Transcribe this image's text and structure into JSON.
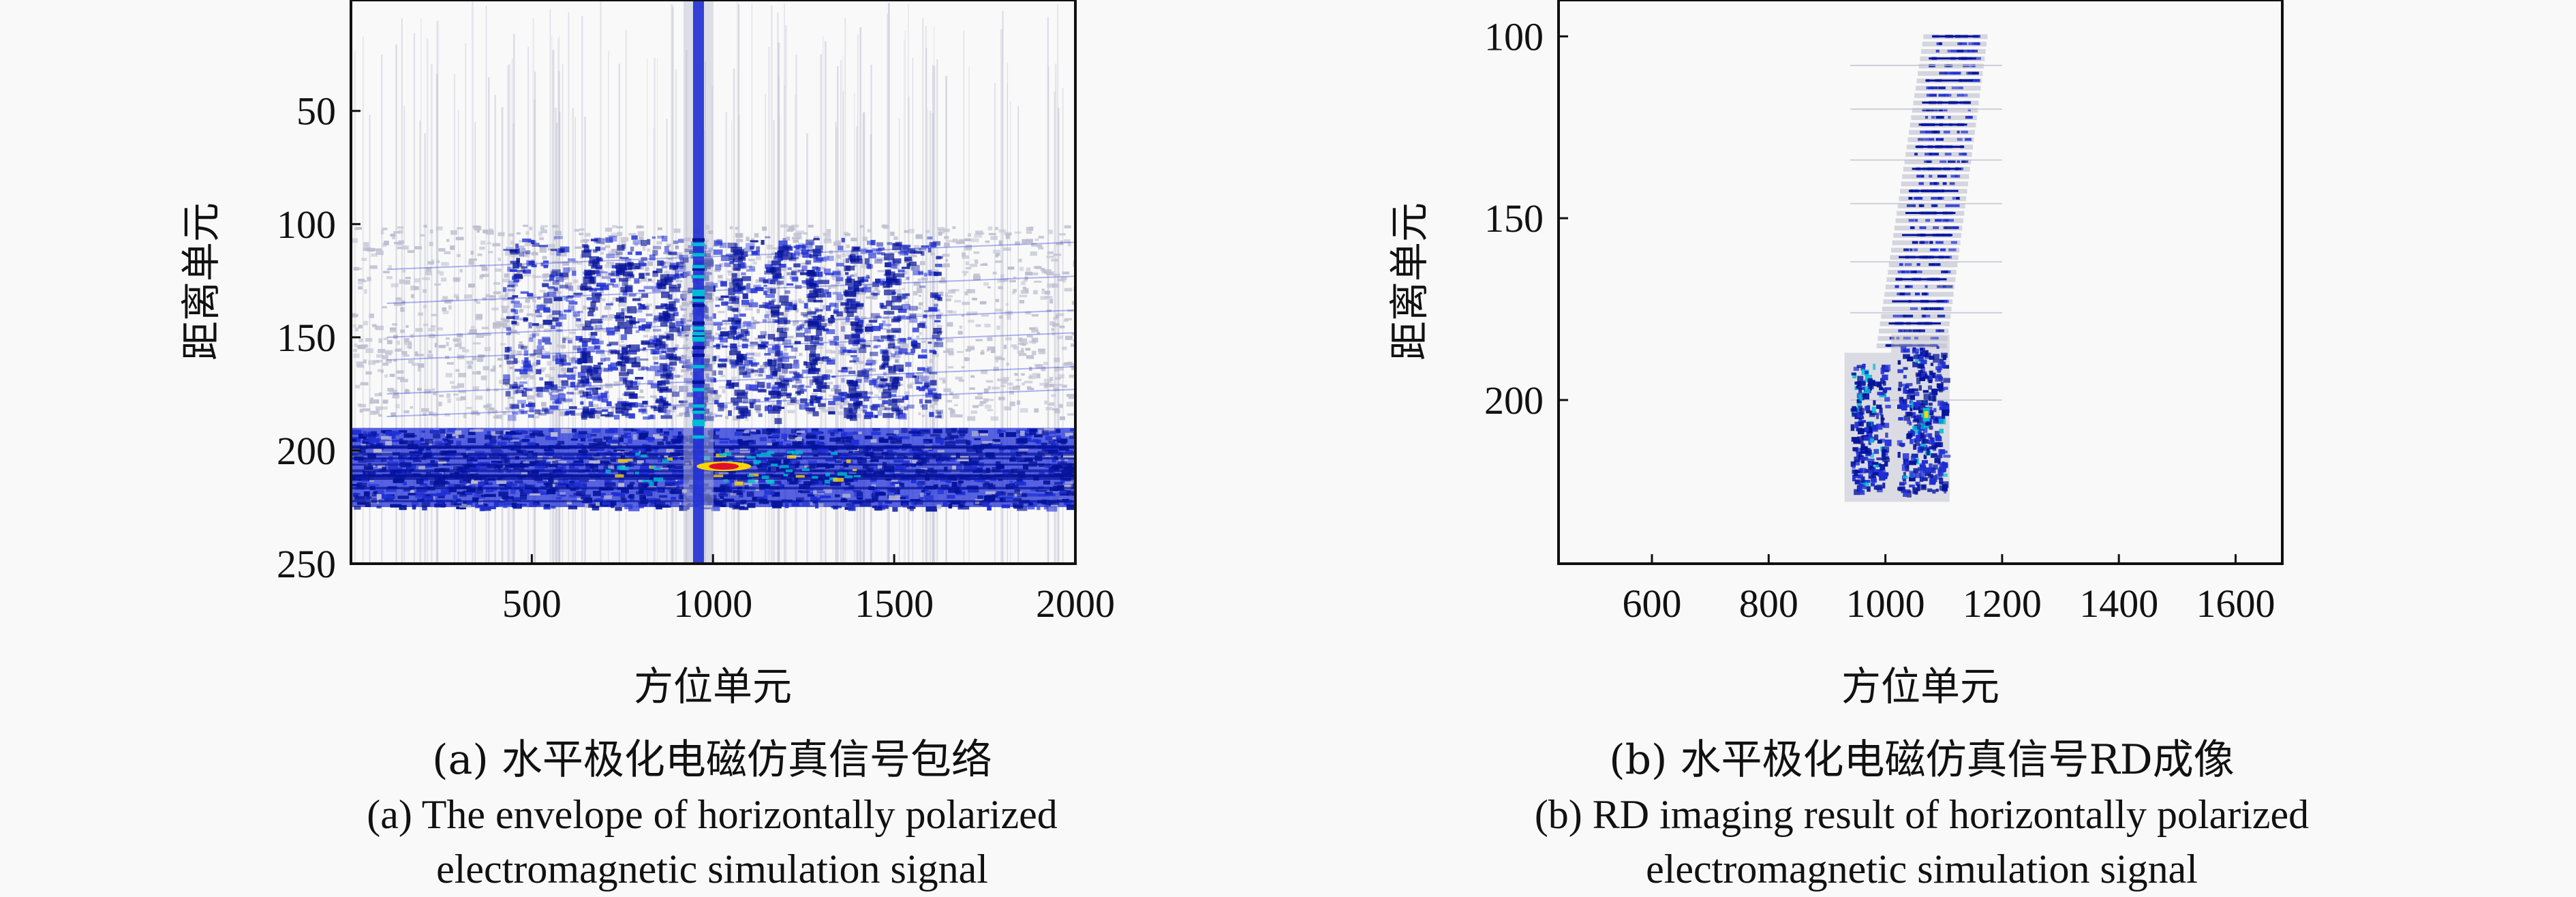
{
  "chart_data": [
    {
      "type": "heatmap",
      "panel": "(a)",
      "xlabel": "方位单元",
      "ylabel": "距离单元",
      "xlim": [
        1,
        2000
      ],
      "ylim": [
        250,
        1
      ],
      "y_inverted": true,
      "x_ticks": [
        500,
        1000,
        1500,
        2000
      ],
      "y_ticks": [
        50,
        100,
        150,
        200,
        250
      ],
      "colormap": [
        "#f9f9f9",
        "#bdbdcf",
        "#1f2fd6",
        "#05139a",
        "#00bcd4",
        "#ffd400",
        "#e0102b"
      ],
      "features": {
        "vertical_line_x": 960,
        "dense_band_y": [
          190,
          225
        ],
        "scatter_region_y": [
          100,
          185
        ],
        "bright_peak": {
          "x": 1030,
          "y": 207
        },
        "periodic_columns_x": [
          650,
          750,
          860,
          960,
          1060,
          1170,
          1270,
          1380,
          1480
        ]
      },
      "caption_cn": "(a) 水平极化电磁仿真信号包络",
      "caption_en_line1": "(a) The envelope of horizontally polarized",
      "caption_en_line2": "electromagnetic simulation signal"
    },
    {
      "type": "heatmap",
      "panel": "(b)",
      "xlabel": "方位单元",
      "ylabel": "距离单元",
      "xlim": [
        440,
        1680
      ],
      "ylim": [
        245,
        90
      ],
      "y_inverted": true,
      "x_ticks": [
        600,
        800,
        1000,
        1200,
        1400,
        1600
      ],
      "y_ticks": [
        100,
        150,
        200
      ],
      "colormap": [
        "#f9f9f9",
        "#bdbdcf",
        "#1f2fd6",
        "#05139a",
        "#00bcd4",
        "#ffd400",
        "#e0102b"
      ],
      "features": {
        "upper_target": {
          "x_top": [
            1080,
            1160
          ],
          "y_top": 100,
          "x_bottom": [
            1000,
            1090
          ],
          "y_bottom": 185
        },
        "lower_left_cluster": {
          "x": [
            940,
            1000
          ],
          "y": [
            190,
            225
          ]
        },
        "lower_right_cluster": {
          "x": [
            1020,
            1100
          ],
          "y": [
            185,
            225
          ]
        },
        "bright_spot": {
          "x": 1070,
          "y": 204
        }
      },
      "caption_cn": "(b) 水平极化电磁仿真信号RD成像",
      "caption_en_line1": "(b) RD imaging result of horizontally polarized",
      "caption_en_line2": "electromagnetic simulation signal"
    }
  ]
}
